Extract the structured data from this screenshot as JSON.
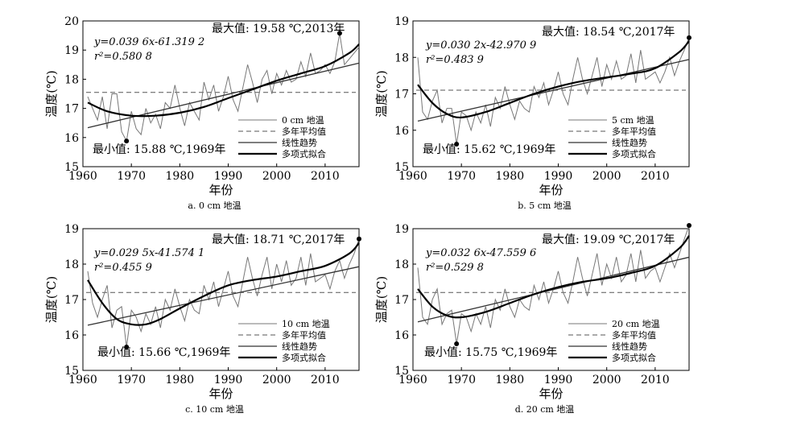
{
  "chart_data": [
    {
      "type": "line",
      "caption": "a. 0 cm 地温",
      "xlabel": "年份",
      "ylabel": "温度(℃)",
      "xlim": [
        1960,
        2017
      ],
      "ylim": [
        15,
        20
      ],
      "x_ticks": [
        1960,
        1970,
        1980,
        1990,
        2000,
        2010
      ],
      "y_ticks": [
        15,
        16,
        17,
        18,
        19,
        20
      ],
      "equation": "y=0.039 6x-61.319 2",
      "r2": "r²=0.580 8",
      "max_label": "最大值: 19.58 ℃,2013年",
      "min_label": "最小值: 15.88 ℃,1969年",
      "max_point": [
        2013,
        19.58
      ],
      "min_point": [
        1969,
        15.88
      ],
      "mean": 17.55,
      "trend": {
        "slope": 0.0396,
        "intercept": -61.3192
      },
      "poly_x": [
        1961,
        1965,
        1970,
        1975,
        1980,
        1985,
        1990,
        1995,
        2000,
        2005,
        2010,
        2015,
        2017
      ],
      "poly_y": [
        17.2,
        16.9,
        16.75,
        16.75,
        16.85,
        17.05,
        17.35,
        17.65,
        17.95,
        18.2,
        18.45,
        18.9,
        19.2
      ],
      "legend": [
        "0 cm 地温",
        "多年平均值",
        "线性趋势",
        "多项式拟合"
      ],
      "series": [
        {
          "x": [
            1961,
            1962,
            1963,
            1964,
            1965,
            1966,
            1967,
            1968,
            1969,
            1970,
            1971,
            1972,
            1973,
            1974,
            1975,
            1976,
            1977,
            1978,
            1979,
            1980,
            1981,
            1982,
            1983,
            1984,
            1985,
            1986,
            1987,
            1988,
            1989,
            1990,
            1991,
            1992,
            1993,
            1994,
            1995,
            1996,
            1997,
            1998,
            1999,
            2000,
            2001,
            2002,
            2003,
            2004,
            2005,
            2006,
            2007,
            2008,
            2009,
            2010,
            2011,
            2012,
            2013,
            2014,
            2015,
            2016,
            2017
          ],
          "values": [
            17.4,
            17.0,
            16.6,
            17.4,
            16.3,
            17.5,
            17.5,
            16.2,
            15.88,
            16.9,
            16.3,
            16.1,
            17.0,
            16.5,
            16.8,
            16.3,
            17.2,
            17.0,
            17.8,
            17.0,
            16.4,
            17.2,
            16.9,
            16.6,
            17.9,
            17.3,
            17.8,
            16.9,
            17.4,
            18.1,
            17.3,
            16.9,
            17.7,
            18.5,
            17.9,
            17.2,
            18.0,
            18.3,
            17.5,
            18.2,
            17.8,
            18.3,
            17.9,
            18.0,
            18.6,
            18.1,
            18.9,
            18.2,
            18.3,
            18.5,
            18.2,
            18.6,
            19.58,
            18.5,
            18.7,
            18.9,
            19.1
          ]
        }
      ]
    },
    {
      "type": "line",
      "caption": "b. 5 cm 地温",
      "xlabel": "年份",
      "ylabel": "温度(℃)",
      "xlim": [
        1960,
        2017
      ],
      "ylim": [
        15,
        19
      ],
      "x_ticks": [
        1960,
        1970,
        1980,
        1990,
        2000,
        2010
      ],
      "y_ticks": [
        15,
        16,
        17,
        18,
        19
      ],
      "equation": "y=0.030 2x-42.970 9",
      "r2": "r²=0.483 9",
      "max_label": "最大值: 18.54 ℃,2017年",
      "min_label": "最小值: 15.62 ℃,1969年",
      "max_point": [
        2017,
        18.54
      ],
      "min_point": [
        1969,
        15.62
      ],
      "mean": 17.1,
      "trend": {
        "slope": 0.0302,
        "intercept": -42.9709
      },
      "poly_x": [
        1961,
        1964,
        1967,
        1970,
        1975,
        1980,
        1985,
        1990,
        1995,
        2000,
        2005,
        2010,
        2015,
        2017
      ],
      "poly_y": [
        17.25,
        16.75,
        16.45,
        16.35,
        16.5,
        16.75,
        17.0,
        17.2,
        17.35,
        17.45,
        17.55,
        17.7,
        18.15,
        18.45
      ],
      "legend": [
        "5 cm 地温",
        "多年平均值",
        "线性趋势",
        "多项式拟合"
      ],
      "series": [
        {
          "x": [
            1961,
            1962,
            1963,
            1964,
            1965,
            1966,
            1967,
            1968,
            1969,
            1970,
            1971,
            1972,
            1973,
            1974,
            1975,
            1976,
            1977,
            1978,
            1979,
            1980,
            1981,
            1982,
            1983,
            1984,
            1985,
            1986,
            1987,
            1988,
            1989,
            1990,
            1991,
            1992,
            1993,
            1994,
            1995,
            1996,
            1997,
            1998,
            1999,
            2000,
            2001,
            2002,
            2003,
            2004,
            2005,
            2006,
            2007,
            2008,
            2009,
            2010,
            2011,
            2012,
            2013,
            2014,
            2015,
            2016,
            2017
          ],
          "values": [
            18.0,
            16.5,
            16.3,
            16.8,
            17.1,
            16.2,
            16.6,
            16.6,
            15.62,
            16.5,
            16.4,
            16.0,
            16.5,
            16.2,
            16.7,
            16.1,
            16.9,
            16.6,
            17.2,
            16.7,
            16.3,
            16.8,
            16.6,
            16.5,
            17.2,
            16.9,
            17.3,
            16.7,
            17.1,
            17.6,
            17.0,
            16.7,
            17.4,
            18.0,
            17.4,
            17.0,
            17.5,
            18.0,
            17.2,
            17.8,
            17.4,
            17.9,
            17.4,
            17.5,
            18.1,
            17.3,
            18.2,
            17.4,
            17.5,
            17.6,
            17.3,
            17.6,
            18.0,
            17.5,
            17.9,
            18.2,
            18.54
          ]
        }
      ]
    },
    {
      "type": "line",
      "caption": "c. 10 cm 地温",
      "xlabel": "年份",
      "ylabel": "温度(℃)",
      "xlim": [
        1960,
        2017
      ],
      "ylim": [
        15,
        19
      ],
      "x_ticks": [
        1960,
        1970,
        1980,
        1990,
        2000,
        2010
      ],
      "y_ticks": [
        15,
        16,
        17,
        18,
        19
      ],
      "equation": "y=0.029 5x-41.574 1",
      "r2": "r²=0.455 9",
      "max_label": "最大值: 18.71 ℃,2017年",
      "min_label": "最小值: 15.66 ℃,1969年",
      "max_point": [
        2017,
        18.71
      ],
      "min_point": [
        1969,
        15.66
      ],
      "mean": 17.2,
      "trend": {
        "slope": 0.0295,
        "intercept": -41.5741
      },
      "poly_x": [
        1961,
        1964,
        1967,
        1970,
        1973,
        1976,
        1980,
        1985,
        1990,
        1995,
        2000,
        2005,
        2010,
        2015,
        2017
      ],
      "poly_y": [
        17.55,
        16.9,
        16.45,
        16.3,
        16.3,
        16.45,
        16.75,
        17.1,
        17.4,
        17.55,
        17.65,
        17.8,
        17.95,
        18.3,
        18.6
      ],
      "legend": [
        "10 cm 地温",
        "多年平均值",
        "线性趋势",
        "多项式拟合"
      ],
      "series": [
        {
          "x": [
            1961,
            1962,
            1963,
            1964,
            1965,
            1966,
            1967,
            1968,
            1969,
            1970,
            1971,
            1972,
            1973,
            1974,
            1975,
            1976,
            1977,
            1978,
            1979,
            1980,
            1981,
            1982,
            1983,
            1984,
            1985,
            1986,
            1987,
            1988,
            1989,
            1990,
            1991,
            1992,
            1993,
            1994,
            1995,
            1996,
            1997,
            1998,
            1999,
            2000,
            2001,
            2002,
            2003,
            2004,
            2005,
            2006,
            2007,
            2008,
            2009,
            2010,
            2011,
            2012,
            2013,
            2014,
            2015,
            2016,
            2017
          ],
          "values": [
            17.8,
            16.9,
            16.5,
            17.0,
            17.4,
            16.2,
            16.7,
            16.8,
            15.66,
            16.7,
            16.5,
            16.1,
            16.6,
            16.3,
            16.8,
            16.2,
            17.0,
            16.7,
            17.3,
            16.8,
            16.4,
            17.0,
            16.7,
            16.6,
            17.4,
            17.0,
            17.5,
            16.8,
            17.3,
            17.8,
            17.1,
            16.8,
            17.5,
            18.2,
            17.6,
            17.1,
            17.7,
            18.2,
            17.3,
            18.0,
            17.5,
            18.1,
            17.4,
            17.6,
            18.2,
            17.4,
            18.3,
            17.5,
            17.6,
            17.7,
            17.3,
            17.8,
            18.1,
            17.6,
            18.0,
            18.3,
            18.71
          ]
        }
      ]
    },
    {
      "type": "line",
      "caption": "d. 20 cm 地温",
      "xlabel": "年份",
      "ylabel": "温度(℃)",
      "xlim": [
        1960,
        2017
      ],
      "ylim": [
        15,
        19
      ],
      "x_ticks": [
        1960,
        1970,
        1980,
        1990,
        2000,
        2010
      ],
      "y_ticks": [
        15,
        16,
        17,
        18,
        19
      ],
      "equation": "y=0.032 6x-47.559 6",
      "r2": "r²=0.529 8",
      "max_label": "最大值: 19.09 ℃,2017年",
      "min_label": "最小值: 15.75 ℃,1969年",
      "max_point": [
        2017,
        19.09
      ],
      "min_point": [
        1969,
        15.75
      ],
      "mean": 17.2,
      "trend": {
        "slope": 0.0326,
        "intercept": -47.5596
      },
      "poly_x": [
        1961,
        1964,
        1967,
        1970,
        1975,
        1980,
        1985,
        1990,
        1995,
        2000,
        2005,
        2010,
        2015,
        2017
      ],
      "poly_y": [
        17.3,
        16.8,
        16.55,
        16.5,
        16.65,
        16.9,
        17.15,
        17.35,
        17.5,
        17.6,
        17.75,
        17.95,
        18.45,
        18.8
      ],
      "legend": [
        "20 cm 地温",
        "多年平均值",
        "线性趋势",
        "多项式拟合"
      ],
      "series": [
        {
          "x": [
            1961,
            1962,
            1963,
            1964,
            1965,
            1966,
            1967,
            1968,
            1969,
            1970,
            1971,
            1972,
            1973,
            1974,
            1975,
            1976,
            1977,
            1978,
            1979,
            1980,
            1981,
            1982,
            1983,
            1984,
            1985,
            1986,
            1987,
            1988,
            1989,
            1990,
            1991,
            1992,
            1993,
            1994,
            1995,
            1996,
            1997,
            1998,
            1999,
            2000,
            2001,
            2002,
            2003,
            2004,
            2005,
            2006,
            2007,
            2008,
            2009,
            2010,
            2011,
            2012,
            2013,
            2014,
            2015,
            2016,
            2017
          ],
          "values": [
            17.9,
            16.5,
            16.3,
            17.0,
            17.3,
            16.3,
            16.6,
            16.7,
            15.75,
            16.6,
            16.5,
            16.1,
            16.6,
            16.3,
            16.8,
            16.2,
            17.0,
            16.7,
            17.3,
            16.8,
            16.5,
            17.0,
            16.8,
            16.7,
            17.4,
            17.0,
            17.5,
            16.9,
            17.3,
            17.8,
            17.2,
            16.9,
            17.5,
            18.2,
            17.6,
            17.1,
            17.7,
            18.3,
            17.4,
            18.0,
            17.6,
            18.2,
            17.5,
            17.7,
            18.3,
            17.5,
            18.4,
            17.6,
            17.8,
            17.9,
            17.5,
            17.9,
            18.3,
            17.9,
            18.3,
            18.7,
            19.09
          ]
        }
      ]
    }
  ]
}
